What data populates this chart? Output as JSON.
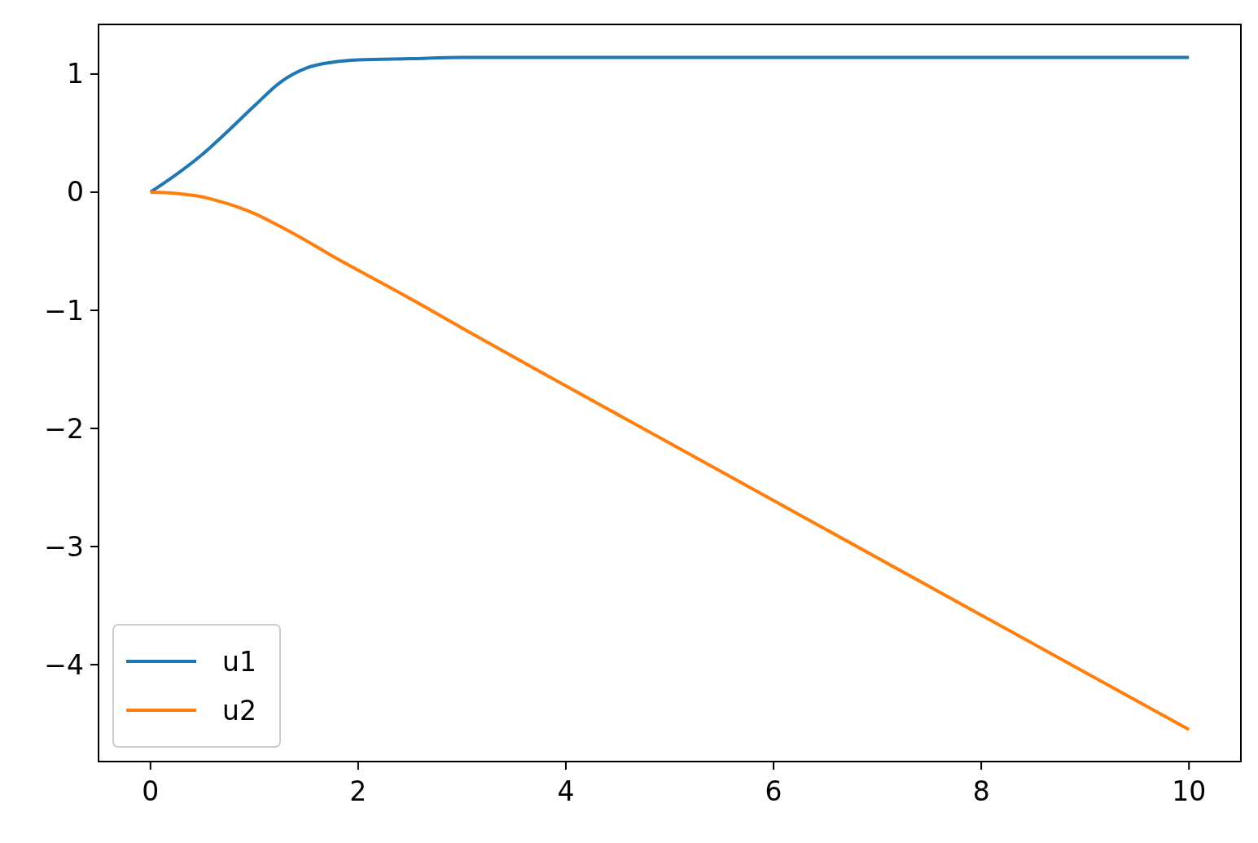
{
  "chart_data": {
    "type": "line",
    "x": [
      0,
      0.25,
      0.5,
      0.75,
      1,
      1.25,
      1.5,
      1.75,
      2,
      2.5,
      3,
      4,
      6,
      8,
      10
    ],
    "series": [
      {
        "name": "u1",
        "color": "#1f77b4",
        "values": [
          0,
          0.15,
          0.32,
          0.52,
          0.73,
          0.93,
          1.05,
          1.1,
          1.12,
          1.13,
          1.14,
          1.14,
          1.14,
          1.14,
          1.14
        ]
      },
      {
        "name": "u2",
        "color": "#ff7f0e",
        "values": [
          0,
          -0.01,
          -0.04,
          -0.1,
          -0.18,
          -0.29,
          -0.41,
          -0.54,
          -0.66,
          -0.9,
          -1.15,
          -1.64,
          -2.61,
          -3.58,
          -4.55
        ]
      }
    ],
    "xlim": [
      -0.5,
      10.5
    ],
    "ylim": [
      -4.82,
      1.42
    ],
    "xticks": [
      0,
      2,
      4,
      6,
      8,
      10
    ],
    "yticks": [
      {
        "value": -4,
        "label": "−4"
      },
      {
        "value": -3,
        "label": "−3"
      },
      {
        "value": -2,
        "label": "−2"
      },
      {
        "value": -1,
        "label": "−1"
      },
      0,
      1
    ],
    "legend": "bottom left",
    "grid": false,
    "marker": "none",
    "line_style": "solid"
  }
}
